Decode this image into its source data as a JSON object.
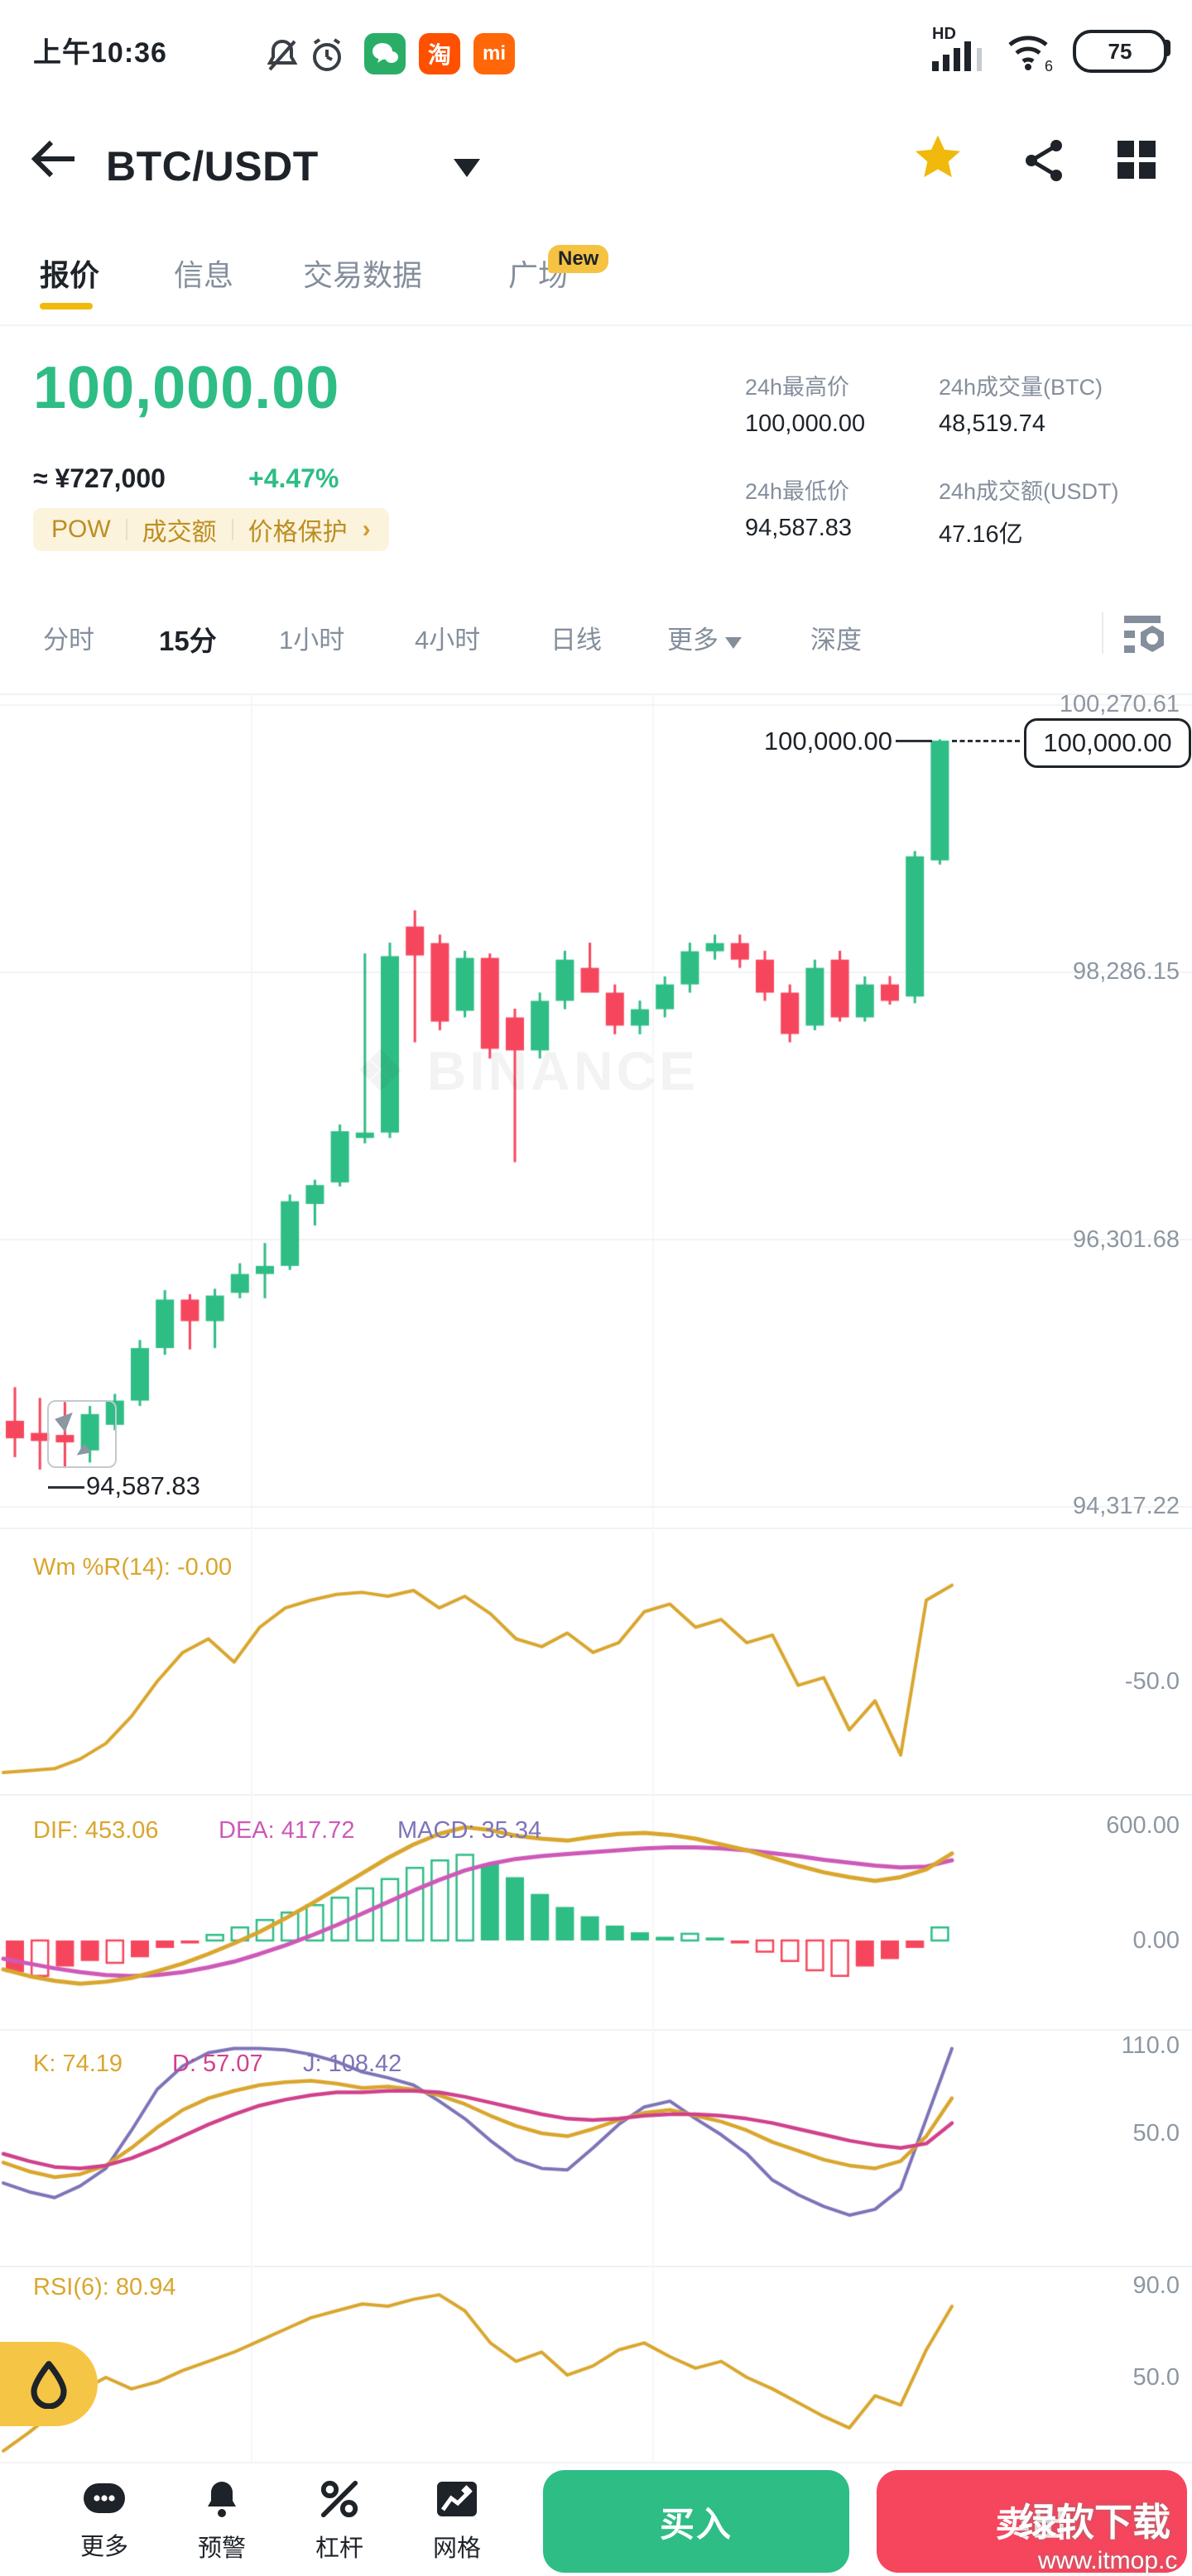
{
  "status_bar": {
    "time": "上午10:36",
    "hd": "HD",
    "battery": "75",
    "wifi_sub": "6"
  },
  "header": {
    "title": "BTC/USDT",
    "tabs": [
      {
        "label": "报价",
        "active": true
      },
      {
        "label": "信息",
        "active": false
      },
      {
        "label": "交易数据",
        "active": false
      },
      {
        "label": "广场",
        "active": false,
        "badge": "New"
      }
    ]
  },
  "price": {
    "last": "100,000.00",
    "cny": "≈ ¥727,000",
    "change": "+4.47%",
    "tags": [
      "POW",
      "成交额",
      "价格保护"
    ],
    "tag_chevron": "›",
    "stats": [
      {
        "label": "24h最高价",
        "value": "100,000.00"
      },
      {
        "label": "24h成交量(BTC)",
        "value": "48,519.74"
      },
      {
        "label": "24h最低价",
        "value": "94,587.83"
      },
      {
        "label": "24h成交额(USDT)",
        "value": "47.16亿"
      }
    ]
  },
  "timeframes": {
    "items": [
      "分时",
      "15分",
      "1小时",
      "4小时",
      "日线"
    ],
    "active": "15分",
    "more": "更多",
    "depth": "深度"
  },
  "watermark": {
    "chart": "BINANCE",
    "overlay_title": "绿软下载",
    "overlay_url": "www.itmop.c"
  },
  "colors": {
    "up": "#2EBD85",
    "down": "#F6465D",
    "accent": "#F0B90B",
    "grid": "#F2F3F5",
    "vgrid": "#F6F7F8",
    "dif": "#D9A62E",
    "dea": "#CE59B8",
    "macd": "#7C74B8",
    "k": "#D9A62E",
    "d": "#D0418C",
    "j": "#7C74B8",
    "wr": "#D9A62E",
    "rsi": "#D9A62E"
  },
  "chart_data": {
    "type": "candlestick",
    "main": {
      "y_axis_labels": [
        "100,270.61",
        "98,286.15",
        "96,301.68",
        "94,317.22"
      ],
      "y_axis_values": [
        100270.61,
        98286.15,
        96301.68,
        94317.22
      ],
      "current_price": "100,000.00",
      "current_price_value": 100000,
      "low_marker": "94,587.83",
      "vgrid_x": [
        303,
        788
      ],
      "candles": [
        [
          94950,
          95200,
          94680,
          94820
        ],
        [
          94860,
          95120,
          94588,
          94800
        ],
        [
          94845,
          95090,
          94600,
          94790
        ],
        [
          94730,
          95060,
          94640,
          95000
        ],
        [
          94920,
          95150,
          94880,
          95100
        ],
        [
          95100,
          95550,
          95060,
          95490
        ],
        [
          95490,
          95920,
          95440,
          95850
        ],
        [
          95850,
          95890,
          95480,
          95690
        ],
        [
          95690,
          95930,
          95490,
          95880
        ],
        [
          95900,
          96120,
          95860,
          96040
        ],
        [
          96040,
          96270,
          95860,
          96100
        ],
        [
          96100,
          96630,
          96070,
          96580
        ],
        [
          96560,
          96740,
          96400,
          96700
        ],
        [
          96720,
          97150,
          96690,
          97100
        ],
        [
          97050,
          98420,
          97010,
          97090
        ],
        [
          97090,
          98500,
          97050,
          98400
        ],
        [
          98620,
          98740,
          97760,
          98405
        ],
        [
          98497,
          98560,
          97850,
          97914
        ],
        [
          97994,
          98440,
          97945,
          98387
        ],
        [
          98387,
          98420,
          97640,
          97712
        ],
        [
          97945,
          98010,
          96870,
          97700
        ],
        [
          97700,
          98130,
          97640,
          98068
        ],
        [
          98068,
          98440,
          98006,
          98374
        ],
        [
          98313,
          98500,
          98252,
          98129
        ],
        [
          98129,
          98190,
          97820,
          97884
        ],
        [
          97884,
          98070,
          97820,
          98006
        ],
        [
          98006,
          98250,
          97945,
          98190
        ],
        [
          98190,
          98500,
          98129,
          98436
        ],
        [
          98436,
          98560,
          98374,
          98497
        ],
        [
          98497,
          98560,
          98313,
          98374
        ],
        [
          98374,
          98440,
          98068,
          98129
        ],
        [
          98129,
          98190,
          97760,
          97822
        ],
        [
          97884,
          98374,
          97850,
          98313
        ],
        [
          98374,
          98440,
          97914,
          97945
        ],
        [
          97945,
          98250,
          97914,
          98190
        ],
        [
          98190,
          98252,
          98040,
          98068
        ],
        [
          98100,
          99180,
          98050,
          99141
        ],
        [
          99111,
          100010,
          99080,
          100000
        ]
      ]
    },
    "wr": {
      "label": "Wm %R(14): -0.00",
      "axis_labels": [
        "-50.0"
      ],
      "axis_values": [
        -50
      ],
      "values": [
        -97,
        -96,
        -95,
        -90,
        -82,
        -68,
        -50,
        -35,
        -28,
        -40,
        -22,
        -12,
        -8,
        -5,
        -4,
        -6,
        -3,
        -12,
        -6,
        -15,
        -28,
        -32,
        -25,
        -35,
        -30,
        -14,
        -10,
        -22,
        -18,
        -30,
        -26,
        -52,
        -48,
        -75,
        -60,
        -88,
        -8,
        -0.3
      ]
    },
    "macd": {
      "labels": {
        "dif": "DIF: 453.06",
        "dea": "DEA: 417.72",
        "macd": "MACD: 35.34"
      },
      "axis_labels": [
        "600.00",
        "0.00"
      ],
      "axis_values": [
        600,
        0
      ],
      "dif": [
        -150,
        -185,
        -210,
        -225,
        -215,
        -195,
        -160,
        -120,
        -70,
        -15,
        45,
        115,
        190,
        270,
        350,
        430,
        500,
        555,
        590,
        575,
        545,
        530,
        520,
        540,
        555,
        560,
        550,
        530,
        500,
        470,
        430,
        390,
        355,
        330,
        310,
        330,
        370,
        453
      ],
      "dea": [
        -95,
        -120,
        -145,
        -165,
        -180,
        -185,
        -180,
        -165,
        -140,
        -110,
        -70,
        -25,
        25,
        80,
        140,
        200,
        260,
        315,
        365,
        400,
        425,
        440,
        450,
        460,
        470,
        480,
        485,
        485,
        480,
        470,
        455,
        440,
        420,
        405,
        390,
        380,
        385,
        418
      ],
      "hist": [
        -85,
        -95,
        -70,
        -55,
        -60,
        -45,
        -20,
        -8,
        15,
        35,
        55,
        75,
        95,
        115,
        140,
        165,
        195,
        215,
        230,
        205,
        170,
        125,
        90,
        65,
        40,
        22,
        10,
        18,
        8,
        -8,
        -30,
        -55,
        -80,
        -95,
        -70,
        -50,
        -20,
        35
      ]
    },
    "kdj": {
      "labels": {
        "k": "K: 74.19",
        "d": "D: 57.07",
        "j": "J: 108.42"
      },
      "axis_labels": [
        "110.0",
        "50.0"
      ],
      "axis_values": [
        110,
        50
      ],
      "k": [
        30,
        24,
        20,
        22,
        28,
        40,
        54,
        66,
        74,
        79,
        83,
        85,
        86,
        84,
        81,
        82,
        80,
        76,
        70,
        62,
        55,
        50,
        48,
        53,
        59,
        64,
        66,
        62,
        58,
        52,
        44,
        38,
        32,
        28,
        26,
        31,
        48,
        74
      ],
      "d": [
        36,
        31,
        27,
        26,
        28,
        33,
        40,
        48,
        56,
        63,
        69,
        73,
        76,
        78,
        78,
        79,
        79,
        78,
        75,
        71,
        67,
        63,
        60,
        59,
        60,
        62,
        63,
        63,
        62,
        60,
        57,
        53,
        49,
        45,
        42,
        40,
        43,
        57
      ],
      "j": [
        16,
        10,
        6,
        14,
        26,
        52,
        80,
        96,
        105,
        108,
        108,
        107,
        104,
        99,
        92,
        88,
        83,
        72,
        60,
        45,
        32,
        26,
        25,
        40,
        56,
        68,
        72,
        60,
        49,
        36,
        18,
        8,
        0,
        -6,
        -2,
        12,
        60,
        108
      ]
    },
    "rsi": {
      "label": "RSI(6): 80.94",
      "axis_labels": [
        "90.0",
        "50.0"
      ],
      "axis_values": [
        90,
        50
      ],
      "values": [
        18,
        26,
        35,
        44,
        50,
        45,
        48,
        53,
        57,
        61,
        66,
        71,
        76,
        79,
        82,
        81,
        84,
        86,
        79,
        65,
        57,
        61,
        51,
        55,
        62,
        65,
        59,
        54,
        57,
        50,
        45,
        39,
        33,
        28,
        42,
        38,
        62,
        81
      ]
    }
  },
  "bottom_nav": {
    "items": [
      {
        "label": "更多"
      },
      {
        "label": "预警"
      },
      {
        "label": "杠杆"
      },
      {
        "label": "网格"
      }
    ],
    "buy": "买入",
    "sell": "卖出"
  }
}
